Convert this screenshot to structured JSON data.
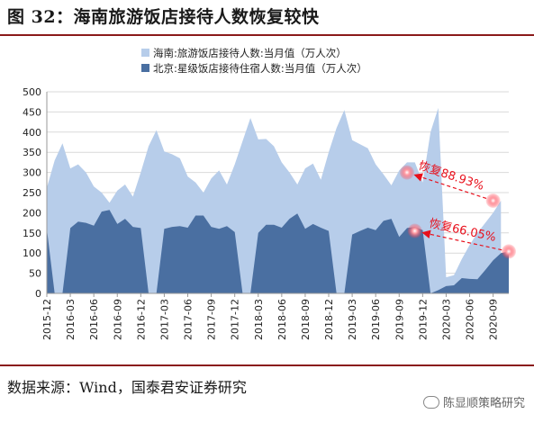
{
  "title": "图 32：海南旅游饭店接待人数恢复较快",
  "source": "数据来源：Wind，国泰君安证券研究",
  "watermark": "陈显顺策略研究",
  "chart_data": {
    "type": "area",
    "x": [
      "2015-12",
      "2016-01",
      "2016-02",
      "2016-03",
      "2016-04",
      "2016-05",
      "2016-06",
      "2016-07",
      "2016-08",
      "2016-09",
      "2016-10",
      "2016-11",
      "2016-12",
      "2017-01",
      "2017-02",
      "2017-03",
      "2017-04",
      "2017-05",
      "2017-06",
      "2017-07",
      "2017-08",
      "2017-09",
      "2017-10",
      "2017-11",
      "2017-12",
      "2018-01",
      "2018-02",
      "2018-03",
      "2018-04",
      "2018-05",
      "2018-06",
      "2018-07",
      "2018-08",
      "2018-09",
      "2018-10",
      "2018-11",
      "2018-12",
      "2019-01",
      "2019-02",
      "2019-03",
      "2019-04",
      "2019-05",
      "2019-06",
      "2019-07",
      "2019-08",
      "2019-09",
      "2019-10",
      "2019-11",
      "2019-12",
      "2020-01",
      "2020-02",
      "2020-03",
      "2020-04",
      "2020-05",
      "2020-06",
      "2020-07",
      "2020-08",
      "2020-09",
      "2020-10",
      "2020-11"
    ],
    "xticks": [
      "2015-12",
      "2016-03",
      "2016-06",
      "2016-09",
      "2016-12",
      "2017-03",
      "2017-06",
      "2017-09",
      "2017-12",
      "2018-03",
      "2018-06",
      "2018-09",
      "2018-12",
      "2019-03",
      "2019-06",
      "2019-09",
      "2019-12",
      "2020-03",
      "2020-06",
      "2020-09"
    ],
    "ylim": [
      0,
      500
    ],
    "yticks": [
      0,
      50,
      100,
      150,
      200,
      250,
      300,
      350,
      400,
      450,
      500
    ],
    "series": [
      {
        "name": "海南:旅游饭店接待人数:当月值（万人次）",
        "color": "#b7cdea",
        "values": [
          262,
          330,
          372,
          310,
          320,
          300,
          265,
          250,
          225,
          255,
          270,
          240,
          300,
          365,
          405,
          352,
          345,
          335,
          290,
          275,
          250,
          285,
          305,
          270,
          320,
          378,
          435,
          382,
          383,
          365,
          325,
          300,
          270,
          310,
          322,
          282,
          350,
          410,
          455,
          380,
          370,
          360,
          320,
          295,
          268,
          305,
          325,
          325,
          275,
          400,
          460,
          40,
          45,
          85,
          120,
          150,
          175,
          200,
          230,
          null
        ]
      },
      {
        "name": "北京:星级饭店接待住宿人数:当月值（万人次）",
        "color": "#4a6fa1",
        "values": [
          160,
          0,
          0,
          162,
          178,
          175,
          168,
          203,
          207,
          172,
          185,
          165,
          162,
          0,
          0,
          160,
          165,
          167,
          163,
          193,
          193,
          165,
          160,
          167,
          152,
          0,
          0,
          150,
          170,
          170,
          163,
          185,
          198,
          160,
          172,
          163,
          155,
          0,
          0,
          146,
          155,
          163,
          157,
          180,
          185,
          140,
          162,
          165,
          157,
          0,
          8,
          18,
          20,
          38,
          36,
          35,
          58,
          82,
          100,
          104
        ]
      }
    ],
    "legend_position": "top",
    "annotations": [
      {
        "text": "恢复88.93%",
        "from_index": 57,
        "from_value": 230,
        "to_index": 46,
        "to_value": 300
      },
      {
        "text": "恢复66.05%",
        "from_index": 59,
        "from_value": 104,
        "to_index": 47,
        "to_value": 155
      }
    ]
  }
}
